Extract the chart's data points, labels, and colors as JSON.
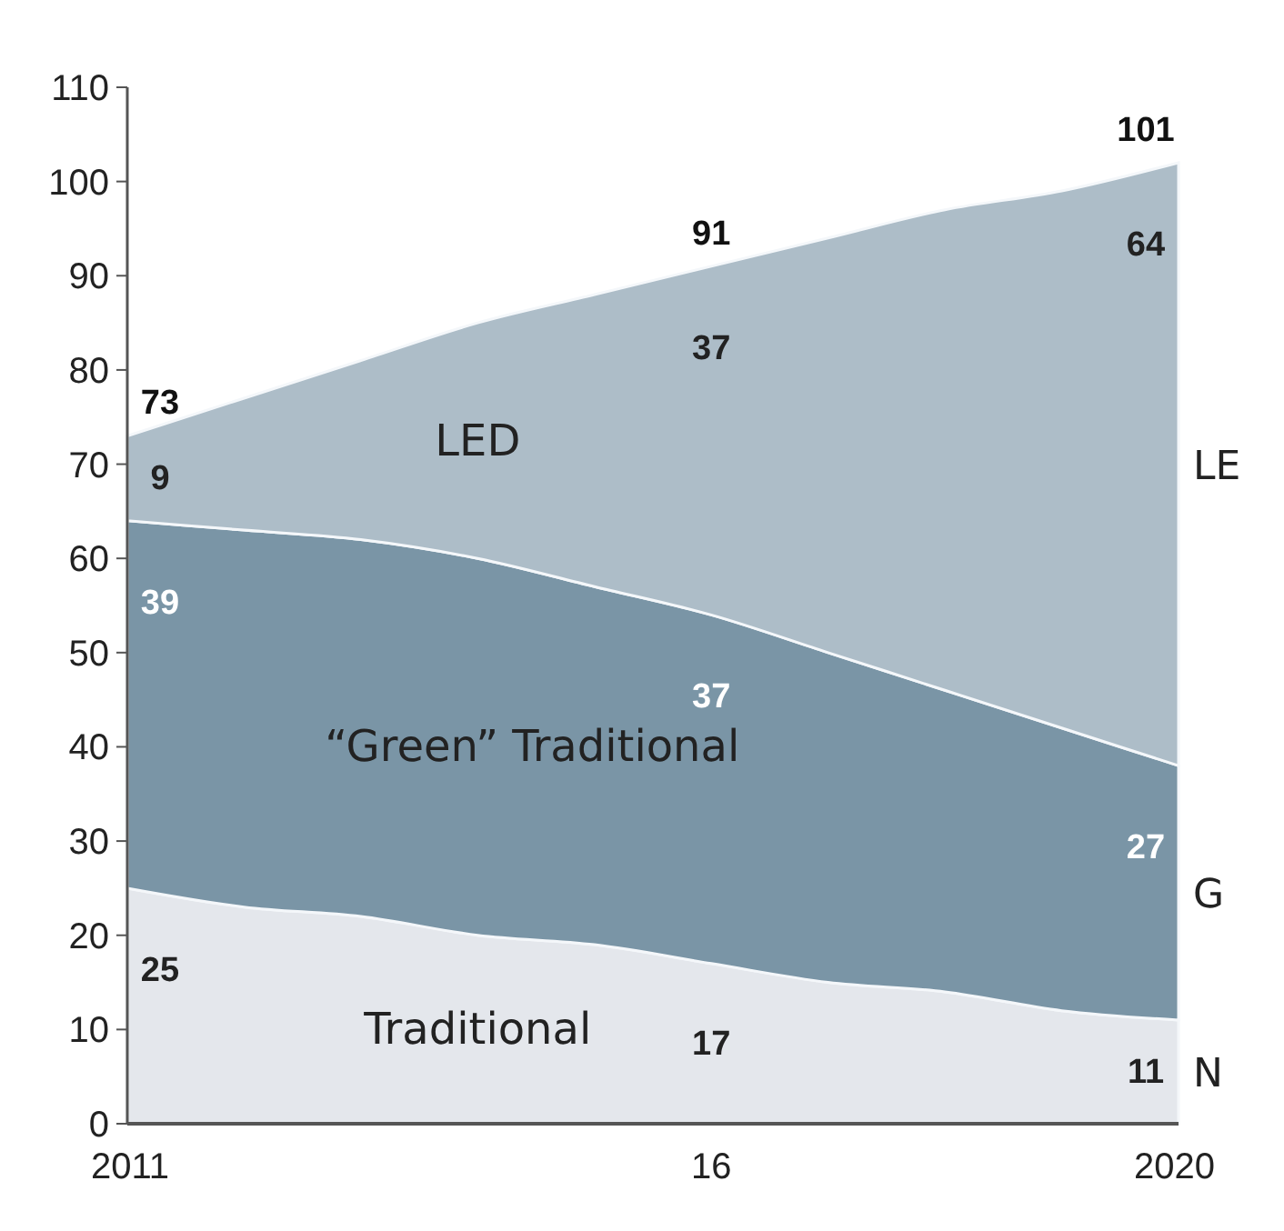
{
  "chart_data": {
    "type": "area",
    "stacked": true,
    "x": [
      2011,
      2012,
      2013,
      2014,
      2015,
      2016,
      2017,
      2018,
      2019,
      2020
    ],
    "xlim": [
      2011,
      2020
    ],
    "xticks": [
      {
        "value": 2011,
        "label": "2011"
      },
      {
        "value": 2016,
        "label": "16"
      },
      {
        "value": 2020,
        "label": "2020"
      }
    ],
    "ylim": [
      0,
      110
    ],
    "yticks": [
      0,
      10,
      20,
      30,
      40,
      50,
      60,
      70,
      80,
      90,
      100,
      110
    ],
    "grid": false,
    "series": [
      {
        "name": "Traditional",
        "color": "#e4e7ec",
        "values": [
          25,
          23,
          22,
          20,
          19,
          17,
          15,
          14,
          12,
          11
        ],
        "value_labels": [
          "25",
          null,
          null,
          null,
          null,
          "17",
          null,
          null,
          null,
          "11"
        ]
      },
      {
        "name": "“Green” Traditional",
        "color": "#7a95a6",
        "values": [
          39,
          40,
          40,
          40,
          38,
          37,
          35,
          32,
          30,
          27
        ],
        "value_labels": [
          "39",
          null,
          null,
          null,
          null,
          "37",
          null,
          null,
          null,
          "27"
        ]
      },
      {
        "name": "LED",
        "color": "#adbdc8",
        "values": [
          9,
          14,
          19,
          25,
          31,
          37,
          44,
          51,
          57,
          64
        ],
        "value_labels": [
          "9",
          null,
          null,
          null,
          null,
          "37",
          null,
          null,
          null,
          "64"
        ]
      }
    ],
    "totals": [
      "73",
      null,
      null,
      null,
      null,
      "91",
      null,
      null,
      null,
      "101"
    ],
    "annotations": [
      "LE",
      "G",
      "N"
    ]
  }
}
